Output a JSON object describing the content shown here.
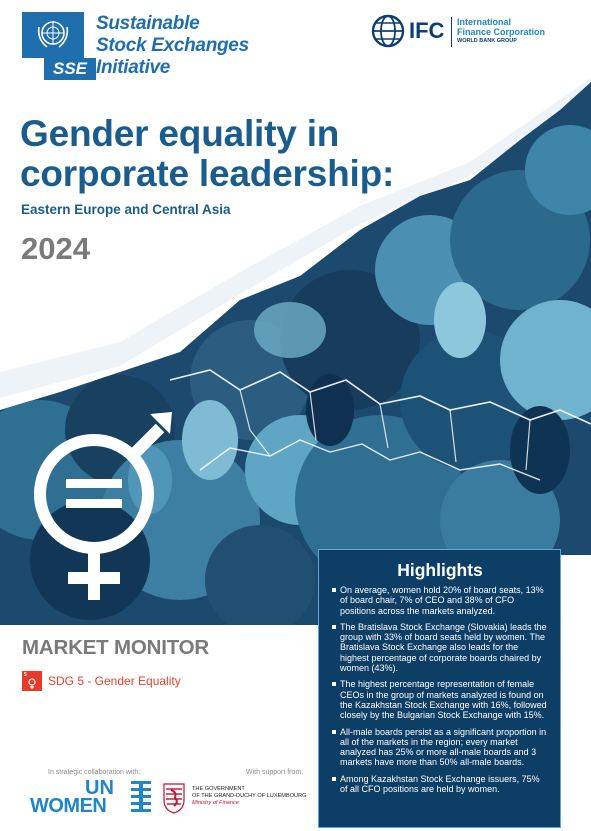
{
  "brand": {
    "sse_tag": "SSE",
    "sse_lines": [
      "Sustainable",
      "Stock Exchanges",
      "Initiative"
    ],
    "ifc_mark": "IFC",
    "ifc_name_lines": [
      "International",
      "Finance Corporation"
    ],
    "ifc_group": "WORLD BANK GROUP"
  },
  "title_lines": [
    "Gender equality in",
    "corporate leadership:"
  ],
  "subtitle": "Eastern Europe and Central Asia",
  "year": "2024",
  "market_monitor": "MARKET MONITOR",
  "sdg": {
    "tile_number": "5",
    "tile_text": "GENDER EQUALITY",
    "label": "SDG 5 - Gender Equality",
    "color": "#e83a29"
  },
  "highlights": {
    "title": "Highlights",
    "items": [
      "On average, women hold 20% of board seats, 13% of board chair, 7% of CEO and 38% of CFO positions across the markets analyzed.",
      "The Bratislava Stock Exchange (Slovakia) leads the group with 33% of board seats held by women. The Bratislava Stock Exchange also leads for the highest percentage of corporate boards chaired by women (43%).",
      "The highest percentage representation of female CEOs in the group of markets analyzed is found on the Kazakhstan Stock Exchange with 16%, followed closely by the Bulgarian Stock Exchange with 15%.",
      "All-male boards persist as a significant proportion in all of the markets in the region; every market analyzed has 25% or more all-male boards and 3 markets have more than 50% all-male boards.",
      "Among Kazakhstan Stock Exchange issuers, 75% of all CFO positions are held by women."
    ]
  },
  "footer": {
    "collab_text": "In strategic collaboration with:",
    "support_text": "With support from:",
    "unw_un": "UN",
    "unw_women": "WOMEN",
    "lux_lines": [
      "THE GOVERNMENT",
      "OF THE GRAND-DUCHY OF LUXEMBOURG",
      "Ministry of Finance"
    ]
  },
  "colors": {
    "title": "#1a5d8c",
    "sse_blue": "#1f6fae",
    "ifc_navy": "#0b3f73",
    "highlights_bg": "#0d3e66",
    "art_dark": "#1c4a6e",
    "art_mid": "#2e6f92",
    "art_light": "#5fa6c4"
  },
  "icons": [
    "un-emblem-icon",
    "ifc-globe-icon",
    "gender-equality-symbol",
    "un-women-mark-icon",
    "luxembourg-lion-icon"
  ]
}
